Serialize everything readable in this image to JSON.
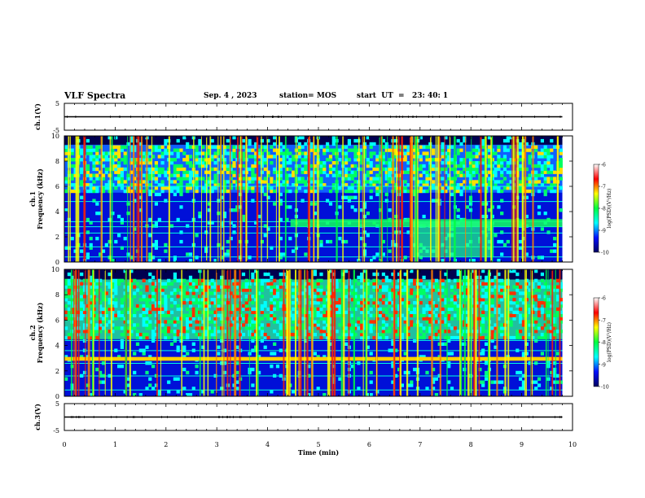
{
  "header": {
    "title": "VLF Spectra",
    "date": "Sep. 4 , 2023",
    "station": "station= MOS",
    "start": "start  UT  =   23: 40: 1"
  },
  "chart_data": [
    {
      "type": "line",
      "panel": "ch1-waveform",
      "ylabel": "ch.1(V)",
      "ylim": [
        -5,
        5
      ],
      "yticks": [
        "5",
        "-5"
      ],
      "xlim": [
        0,
        10
      ],
      "series": [
        {
          "x": [
            0,
            9.8
          ],
          "y": [
            0,
            0
          ]
        }
      ]
    },
    {
      "type": "heatmap",
      "panel": "ch1-spectrogram",
      "ylabel": "ch.1\nFrequency (kHz)",
      "ylim": [
        0,
        10
      ],
      "yticks": [
        "0",
        "2",
        "4",
        "6",
        "8",
        "10"
      ],
      "xlim": [
        0,
        10
      ],
      "data_extent_x": [
        0,
        9.8
      ],
      "colorbar": {
        "label": "log(PSD)(V²/Hz)",
        "ticks": [
          "-6",
          "-7",
          "-8",
          "-9",
          "-10"
        ],
        "range": [
          -10,
          -6
        ]
      }
    },
    {
      "type": "heatmap",
      "panel": "ch2-spectrogram",
      "ylabel": "ch.2\nFrequency (kHz)",
      "ylim": [
        0,
        10
      ],
      "yticks": [
        "0",
        "2",
        "4",
        "6",
        "8",
        "10"
      ],
      "xlim": [
        0,
        10
      ],
      "data_extent_x": [
        0,
        9.8
      ],
      "colorbar": {
        "label": "log(PSD)(V²/Hz)",
        "ticks": [
          "-6",
          "-7",
          "-8",
          "-9",
          "-10"
        ],
        "range": [
          -10,
          -6
        ]
      }
    },
    {
      "type": "line",
      "panel": "ch3-waveform",
      "ylabel": "ch.3(V)",
      "ylim": [
        -5,
        5
      ],
      "yticks": [
        "5",
        "-5"
      ],
      "xlim": [
        0,
        10
      ],
      "series": [
        {
          "x": [
            0,
            9.8
          ],
          "y": [
            0,
            0
          ]
        }
      ]
    }
  ],
  "xaxis": {
    "label": "Time (min)",
    "ticks": [
      "0",
      "1",
      "2",
      "3",
      "4",
      "5",
      "6",
      "7",
      "8",
      "9",
      "10"
    ]
  },
  "colors": {
    "axis": "#000000",
    "background": "#ffffff",
    "colormap": [
      "#000060",
      "#0010ff",
      "#00ffff",
      "#00ff40",
      "#ffff00",
      "#ff0000",
      "#ffffff"
    ]
  }
}
